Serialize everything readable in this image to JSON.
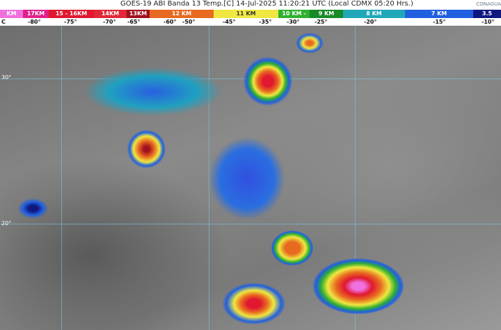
{
  "header": {
    "title": "GOES-19 ABI Banda 13 Temp.[C] 14-Jul-2025 11:20:21 UTC (Local CDMX  05:20 Hrs.)",
    "logo": "CONAGUA"
  },
  "legend": {
    "bands": [
      {
        "label": "KM",
        "color": "#f070e0"
      },
      {
        "label": "17KM",
        "color": "#e0208a"
      },
      {
        "label": "15 - 16KM",
        "color": "#e01830"
      },
      {
        "label": "14KM",
        "color": "#e02838"
      },
      {
        "label": "13KM",
        "color": "#a01020"
      },
      {
        "label": "12 KM",
        "color": "#e86a20"
      },
      {
        "label": "11 KM",
        "color": "#f0e840"
      },
      {
        "label": "10 KM -",
        "color": "#30b030"
      },
      {
        "label": "9 KM",
        "color": "#188a28"
      },
      {
        "label": "8 KM",
        "color": "#20a8b8"
      },
      {
        "label": "7 KM",
        "color": "#2060e0"
      },
      {
        "label": "3.5",
        "color": "#101880"
      }
    ],
    "temps": [
      "C",
      "-80°",
      "-75°",
      "-70°",
      "-65°",
      "-60°",
      "-50°",
      "-45°",
      "-35°",
      "-30°",
      "-25°",
      "-20°",
      "-15°",
      "-10°"
    ]
  },
  "map": {
    "latitudes": [
      "30°",
      "20°"
    ]
  }
}
